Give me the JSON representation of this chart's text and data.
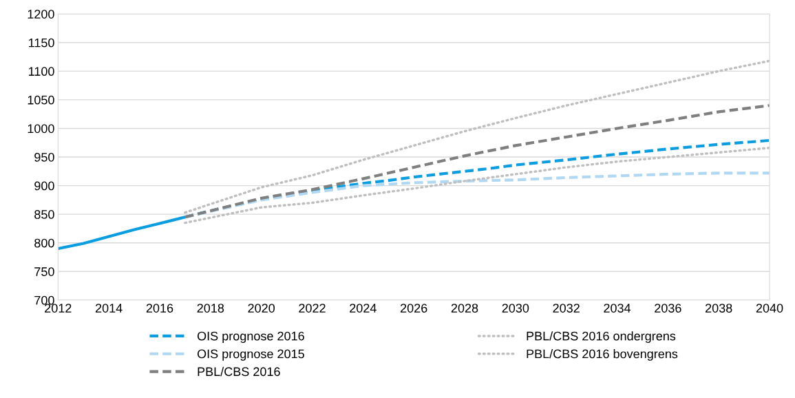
{
  "chart_data": {
    "type": "line",
    "xlim": [
      2012,
      2040
    ],
    "xticks": [
      2012,
      2014,
      2016,
      2018,
      2020,
      2022,
      2024,
      2026,
      2028,
      2030,
      2032,
      2034,
      2036,
      2038,
      2040
    ],
    "ylim": [
      700,
      1200
    ],
    "yticks": [
      700,
      750,
      800,
      850,
      900,
      950,
      1000,
      1050,
      1100,
      1150,
      1200
    ],
    "grid": "y",
    "legend": "bottom",
    "marker": "none",
    "series": [
      {
        "color": "#0a9de0",
        "line_style": "solid",
        "x": [
          2012,
          2013,
          2014,
          2015,
          2016,
          2017
        ],
        "values": [
          790,
          799,
          811,
          823,
          834,
          845
        ]
      },
      {
        "name": "OIS prognose 2016",
        "color": "#0a9de0",
        "line_style": "dashed",
        "x": [
          2017,
          2018,
          2019,
          2020,
          2021,
          2022,
          2023,
          2024,
          2025,
          2026,
          2027,
          2028,
          2029,
          2030,
          2032,
          2034,
          2036,
          2038,
          2040
        ],
        "values": [
          845,
          856,
          866,
          876,
          884,
          891,
          898,
          904,
          909,
          915,
          920,
          925,
          930,
          936,
          945,
          955,
          964,
          972,
          979
        ]
      },
      {
        "name": "OIS prognose 2015",
        "color": "#b0d8f2",
        "line_style": "dashed",
        "x": [
          2017,
          2020,
          2022,
          2024,
          2026,
          2028,
          2030,
          2032,
          2034,
          2036,
          2038,
          2040
        ],
        "values": [
          845,
          875,
          888,
          900,
          905,
          908,
          910,
          914,
          917,
          920,
          922,
          922
        ]
      },
      {
        "name": "PBL/CBS 2016",
        "color": "#7f7f7f",
        "line_style": "dashed",
        "x": [
          2017,
          2020,
          2022,
          2024,
          2026,
          2028,
          2030,
          2032,
          2034,
          2036,
          2038,
          2040
        ],
        "values": [
          845,
          878,
          893,
          912,
          932,
          952,
          970,
          985,
          1000,
          1014,
          1029,
          1040
        ]
      },
      {
        "name": "PBL/CBS 2016 ondergrens",
        "color": "#bfbfbf",
        "line_style": "dotted",
        "x": [
          2017,
          2020,
          2022,
          2024,
          2026,
          2028,
          2030,
          2032,
          2034,
          2036,
          2038,
          2040
        ],
        "values": [
          835,
          862,
          870,
          883,
          895,
          908,
          920,
          932,
          942,
          950,
          958,
          966
        ]
      },
      {
        "name": "PBL/CBS 2016 bovengrens",
        "color": "#bfbfbf",
        "line_style": "dotted",
        "x": [
          2017,
          2020,
          2022,
          2024,
          2026,
          2028,
          2030,
          2032,
          2034,
          2036,
          2038,
          2040
        ],
        "values": [
          853,
          897,
          918,
          945,
          970,
          995,
          1018,
          1040,
          1060,
          1080,
          1100,
          1118
        ]
      }
    ]
  }
}
